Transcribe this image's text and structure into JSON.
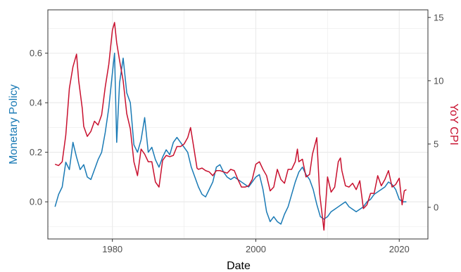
{
  "chart_data": {
    "type": "line",
    "xlabel": "Date",
    "ylabel_left": "Monetary Policy",
    "ylabel_right": "YoY CPI",
    "grid": true,
    "colors": {
      "left": "#1a7ab5",
      "right": "#c8102e",
      "grid": "#ebebeb",
      "panel_border": "#333333"
    },
    "x_ticks": [
      1980,
      2000,
      2020
    ],
    "y_left_ticks": [
      "0.0",
      "0.2",
      "0.4",
      "0.6"
    ],
    "y_right_ticks": [
      "0",
      "5",
      "10",
      "15"
    ],
    "x_range": [
      1971.0,
      2024.0
    ],
    "y_left_range": [
      -0.15,
      0.775
    ],
    "y_right_range": [
      -2.5,
      15.6
    ],
    "series": [
      {
        "name": "Monetary Policy",
        "axis": "left",
        "points": [
          [
            1972.0,
            -0.02
          ],
          [
            1972.5,
            0.03
          ],
          [
            1973.0,
            0.06
          ],
          [
            1973.5,
            0.16
          ],
          [
            1974.0,
            0.13
          ],
          [
            1974.5,
            0.24
          ],
          [
            1975.0,
            0.18
          ],
          [
            1975.5,
            0.13
          ],
          [
            1976.0,
            0.15
          ],
          [
            1976.5,
            0.1
          ],
          [
            1977.0,
            0.09
          ],
          [
            1977.5,
            0.13
          ],
          [
            1978.0,
            0.17
          ],
          [
            1978.5,
            0.2
          ],
          [
            1979.0,
            0.28
          ],
          [
            1979.5,
            0.38
          ],
          [
            1980.0,
            0.52
          ],
          [
            1980.3,
            0.6
          ],
          [
            1980.6,
            0.24
          ],
          [
            1981.0,
            0.48
          ],
          [
            1981.5,
            0.58
          ],
          [
            1982.0,
            0.44
          ],
          [
            1982.5,
            0.4
          ],
          [
            1983.0,
            0.23
          ],
          [
            1983.5,
            0.2
          ],
          [
            1984.0,
            0.25
          ],
          [
            1984.5,
            0.34
          ],
          [
            1985.0,
            0.2
          ],
          [
            1985.5,
            0.22
          ],
          [
            1986.0,
            0.17
          ],
          [
            1986.5,
            0.14
          ],
          [
            1987.0,
            0.18
          ],
          [
            1987.5,
            0.21
          ],
          [
            1988.0,
            0.19
          ],
          [
            1988.5,
            0.24
          ],
          [
            1989.0,
            0.26
          ],
          [
            1989.5,
            0.24
          ],
          [
            1990.0,
            0.22
          ],
          [
            1990.5,
            0.2
          ],
          [
            1991.0,
            0.14
          ],
          [
            1991.5,
            0.1
          ],
          [
            1992.0,
            0.06
          ],
          [
            1992.5,
            0.03
          ],
          [
            1993.0,
            0.02
          ],
          [
            1993.5,
            0.05
          ],
          [
            1994.0,
            0.08
          ],
          [
            1994.5,
            0.14
          ],
          [
            1995.0,
            0.15
          ],
          [
            1995.5,
            0.12
          ],
          [
            1996.0,
            0.1
          ],
          [
            1996.5,
            0.09
          ],
          [
            1997.0,
            0.1
          ],
          [
            1997.5,
            0.09
          ],
          [
            1998.0,
            0.08
          ],
          [
            1998.5,
            0.07
          ],
          [
            1999.0,
            0.06
          ],
          [
            1999.5,
            0.08
          ],
          [
            2000.0,
            0.1
          ],
          [
            2000.5,
            0.11
          ],
          [
            2001.0,
            0.05
          ],
          [
            2001.5,
            -0.04
          ],
          [
            2002.0,
            -0.08
          ],
          [
            2002.5,
            -0.06
          ],
          [
            2003.0,
            -0.08
          ],
          [
            2003.5,
            -0.09
          ],
          [
            2004.0,
            -0.05
          ],
          [
            2004.5,
            -0.02
          ],
          [
            2005.0,
            0.03
          ],
          [
            2005.5,
            0.08
          ],
          [
            2006.0,
            0.12
          ],
          [
            2006.5,
            0.14
          ],
          [
            2007.0,
            0.11
          ],
          [
            2007.5,
            0.09
          ],
          [
            2008.0,
            0.05
          ],
          [
            2008.5,
            -0.01
          ],
          [
            2009.0,
            -0.06
          ],
          [
            2009.5,
            -0.07
          ],
          [
            2010.0,
            -0.06
          ],
          [
            2010.5,
            -0.04
          ],
          [
            2011.0,
            -0.03
          ],
          [
            2011.5,
            -0.02
          ],
          [
            2012.0,
            -0.01
          ],
          [
            2012.5,
            0.0
          ],
          [
            2013.0,
            -0.02
          ],
          [
            2013.5,
            -0.03
          ],
          [
            2014.0,
            -0.04
          ],
          [
            2014.5,
            -0.03
          ],
          [
            2015.0,
            -0.02
          ],
          [
            2015.5,
            0.0
          ],
          [
            2016.0,
            0.01
          ],
          [
            2016.5,
            0.03
          ],
          [
            2017.0,
            0.04
          ],
          [
            2017.5,
            0.05
          ],
          [
            2018.0,
            0.06
          ],
          [
            2018.5,
            0.08
          ],
          [
            2019.0,
            0.07
          ],
          [
            2019.5,
            0.05
          ],
          [
            2020.0,
            0.01
          ],
          [
            2020.5,
            0.0
          ],
          [
            2021.0,
            0.0
          ]
        ]
      },
      {
        "name": "YoY CPI",
        "axis": "right",
        "points": [
          [
            1972.0,
            3.4
          ],
          [
            1972.5,
            3.3
          ],
          [
            1973.0,
            3.6
          ],
          [
            1973.5,
            5.7
          ],
          [
            1974.0,
            9.4
          ],
          [
            1974.5,
            11.1
          ],
          [
            1975.0,
            12.1
          ],
          [
            1975.3,
            10.0
          ],
          [
            1975.8,
            7.8
          ],
          [
            1976.0,
            6.4
          ],
          [
            1976.5,
            5.6
          ],
          [
            1977.0,
            6.0
          ],
          [
            1977.5,
            6.8
          ],
          [
            1978.0,
            6.5
          ],
          [
            1978.5,
            7.3
          ],
          [
            1979.0,
            9.5
          ],
          [
            1979.5,
            11.3
          ],
          [
            1980.0,
            14.0
          ],
          [
            1980.3,
            14.6
          ],
          [
            1980.6,
            13.0
          ],
          [
            1981.0,
            11.6
          ],
          [
            1981.5,
            10.0
          ],
          [
            1982.0,
            7.4
          ],
          [
            1982.5,
            6.2
          ],
          [
            1983.0,
            3.6
          ],
          [
            1983.5,
            2.5
          ],
          [
            1984.0,
            4.6
          ],
          [
            1984.5,
            4.2
          ],
          [
            1985.0,
            3.6
          ],
          [
            1985.5,
            3.6
          ],
          [
            1986.0,
            2.0
          ],
          [
            1986.5,
            1.6
          ],
          [
            1987.0,
            3.7
          ],
          [
            1987.5,
            4.1
          ],
          [
            1988.0,
            4.0
          ],
          [
            1988.5,
            4.1
          ],
          [
            1989.0,
            4.8
          ],
          [
            1989.5,
            4.8
          ],
          [
            1990.0,
            5.0
          ],
          [
            1990.5,
            5.5
          ],
          [
            1990.9,
            6.3
          ],
          [
            1991.3,
            4.9
          ],
          [
            1991.8,
            3.1
          ],
          [
            1992.0,
            3.0
          ],
          [
            1992.5,
            3.1
          ],
          [
            1993.0,
            2.9
          ],
          [
            1993.5,
            2.8
          ],
          [
            1994.0,
            2.5
          ],
          [
            1994.5,
            2.9
          ],
          [
            1995.0,
            2.9
          ],
          [
            1995.5,
            2.8
          ],
          [
            1996.0,
            2.7
          ],
          [
            1996.5,
            3.0
          ],
          [
            1997.0,
            2.9
          ],
          [
            1997.5,
            2.2
          ],
          [
            1998.0,
            1.6
          ],
          [
            1998.5,
            1.6
          ],
          [
            1999.0,
            1.7
          ],
          [
            1999.5,
            2.2
          ],
          [
            2000.0,
            3.4
          ],
          [
            2000.5,
            3.6
          ],
          [
            2001.0,
            3.0
          ],
          [
            2001.5,
            2.5
          ],
          [
            2002.0,
            1.3
          ],
          [
            2002.5,
            1.6
          ],
          [
            2003.0,
            3.0
          ],
          [
            2003.5,
            2.2
          ],
          [
            2004.0,
            1.9
          ],
          [
            2004.5,
            3.0
          ],
          [
            2005.0,
            3.0
          ],
          [
            2005.5,
            3.6
          ],
          [
            2005.8,
            4.6
          ],
          [
            2006.0,
            3.6
          ],
          [
            2006.5,
            3.8
          ],
          [
            2007.0,
            2.4
          ],
          [
            2007.5,
            2.6
          ],
          [
            2007.9,
            4.2
          ],
          [
            2008.5,
            5.5
          ],
          [
            2008.9,
            1.1
          ],
          [
            2009.5,
            -1.8
          ],
          [
            2010.0,
            2.4
          ],
          [
            2010.5,
            1.2
          ],
          [
            2011.0,
            1.6
          ],
          [
            2011.5,
            3.6
          ],
          [
            2011.8,
            3.9
          ],
          [
            2012.0,
            2.9
          ],
          [
            2012.5,
            1.7
          ],
          [
            2013.0,
            1.6
          ],
          [
            2013.5,
            1.9
          ],
          [
            2014.0,
            1.4
          ],
          [
            2014.5,
            2.1
          ],
          [
            2015.0,
            -0.1
          ],
          [
            2015.5,
            0.2
          ],
          [
            2016.0,
            1.1
          ],
          [
            2016.5,
            1.1
          ],
          [
            2017.0,
            2.5
          ],
          [
            2017.5,
            1.7
          ],
          [
            2018.0,
            2.2
          ],
          [
            2018.5,
            2.9
          ],
          [
            2019.0,
            1.6
          ],
          [
            2019.5,
            1.8
          ],
          [
            2020.0,
            2.3
          ],
          [
            2020.4,
            0.2
          ],
          [
            2020.7,
            1.3
          ],
          [
            2021.0,
            1.4
          ]
        ]
      }
    ]
  }
}
